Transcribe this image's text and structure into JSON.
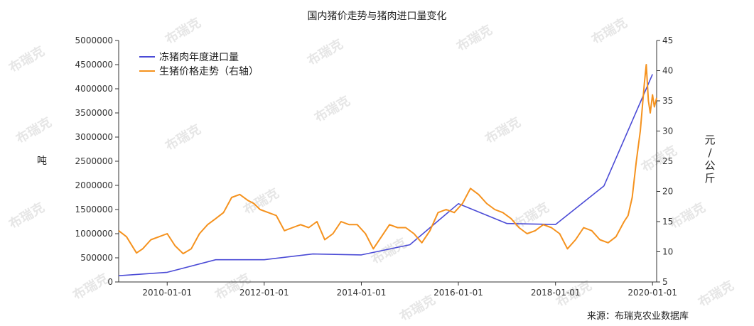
{
  "watermark": "布瑞克",
  "chart_data": {
    "type": "line",
    "title": "国内猪价走势与猪肉进口量变化",
    "source": "来源：布瑞克农业数据库",
    "ylabel_left": "吨",
    "ylabel_right": [
      "元",
      "/",
      "公",
      "斤"
    ],
    "x_ticks": [
      "2010-01-01",
      "2012-01-01",
      "2014-01-01",
      "2016-01-01",
      "2018-01-01",
      "2020-01-01"
    ],
    "x_range": [
      "2009-01-01",
      "2020-02-01"
    ],
    "ylim_left": [
      0,
      5000000
    ],
    "yticks_left": [
      "0",
      "500000",
      "1000000",
      "1500000",
      "2000000",
      "2500000",
      "3000000",
      "3500000",
      "4000000",
      "4500000",
      "5000000"
    ],
    "ylim_right": [
      5,
      45
    ],
    "yticks_right": [
      "5",
      "10",
      "15",
      "20",
      "25",
      "30",
      "35",
      "40",
      "45"
    ],
    "legend_position": "top-left",
    "series": [
      {
        "name": "冻猪肉年度进口量",
        "axis": "left",
        "color": "#4b4bd6",
        "x": [
          "2009-01-01",
          "2010-01-01",
          "2011-01-01",
          "2012-01-01",
          "2013-01-01",
          "2014-01-01",
          "2015-01-01",
          "2016-01-01",
          "2017-01-01",
          "2018-01-01",
          "2019-01-01",
          "2020-01-01"
        ],
        "values": [
          130000,
          200000,
          460000,
          460000,
          580000,
          560000,
          770000,
          1620000,
          1210000,
          1190000,
          1990000,
          4300000
        ]
      },
      {
        "name": "生猪价格走势（右轴）",
        "axis": "right",
        "color": "#f5921e",
        "x": [
          "2009-01-01",
          "2009-03-01",
          "2009-05-15",
          "2009-07-01",
          "2009-09-01",
          "2009-11-01",
          "2010-01-01",
          "2010-03-01",
          "2010-05-01",
          "2010-07-01",
          "2010-09-01",
          "2010-11-01",
          "2011-01-01",
          "2011-03-01",
          "2011-05-01",
          "2011-07-01",
          "2011-09-01",
          "2011-10-15",
          "2011-12-01",
          "2012-02-01",
          "2012-04-01",
          "2012-06-01",
          "2012-08-01",
          "2012-10-01",
          "2012-12-01",
          "2013-02-01",
          "2013-04-01",
          "2013-06-01",
          "2013-08-01",
          "2013-10-01",
          "2013-12-01",
          "2014-02-01",
          "2014-04-01",
          "2014-06-01",
          "2014-08-01",
          "2014-10-01",
          "2014-12-01",
          "2015-02-01",
          "2015-04-01",
          "2015-06-01",
          "2015-08-01",
          "2015-10-01",
          "2015-12-01",
          "2016-02-01",
          "2016-04-01",
          "2016-06-01",
          "2016-08-01",
          "2016-10-01",
          "2016-12-01",
          "2017-02-01",
          "2017-04-01",
          "2017-06-01",
          "2017-08-01",
          "2017-10-01",
          "2017-12-01",
          "2018-02-01",
          "2018-04-01",
          "2018-06-01",
          "2018-08-01",
          "2018-10-01",
          "2018-12-01",
          "2019-02-01",
          "2019-04-01",
          "2019-06-01",
          "2019-07-01",
          "2019-08-01",
          "2019-09-01",
          "2019-10-01",
          "2019-11-01",
          "2019-11-15",
          "2019-12-01",
          "2019-12-15",
          "2020-01-01",
          "2020-01-15",
          "2020-02-01"
        ],
        "values": [
          13.5,
          12.5,
          9.8,
          10.5,
          12.0,
          12.5,
          13.0,
          11.0,
          9.7,
          10.5,
          13.0,
          14.5,
          15.5,
          16.5,
          19.0,
          19.5,
          18.5,
          18.0,
          17.0,
          16.5,
          16.0,
          13.5,
          14.0,
          14.5,
          14.0,
          15.0,
          12.0,
          13.0,
          15.0,
          14.5,
          14.5,
          13.0,
          10.5,
          12.5,
          14.5,
          14.0,
          14.0,
          13.0,
          11.5,
          13.5,
          16.5,
          17.0,
          16.5,
          18.0,
          20.5,
          19.5,
          18.0,
          17.0,
          16.5,
          15.5,
          14.0,
          13.0,
          13.5,
          14.5,
          14.0,
          13.0,
          10.5,
          12.0,
          14.0,
          13.5,
          12.0,
          11.5,
          12.5,
          15.0,
          16.0,
          19.0,
          25.0,
          30.0,
          38.0,
          41.0,
          35.0,
          33.0,
          36.0,
          34.0,
          35.5
        ]
      }
    ]
  }
}
